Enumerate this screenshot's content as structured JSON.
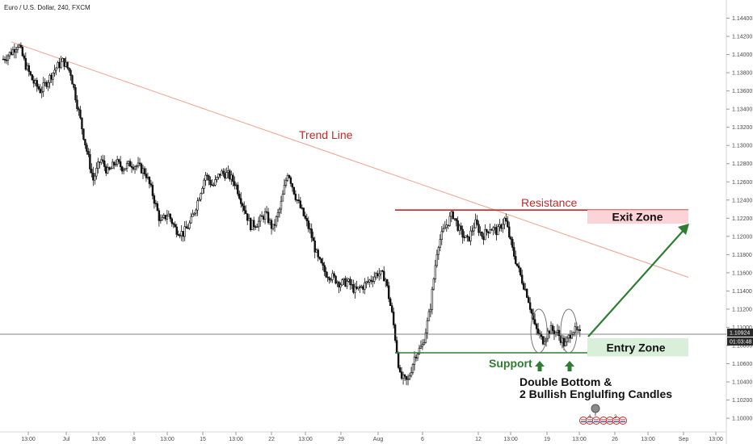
{
  "header": {
    "symbol_title": "Euro / U.S. Dollar, 240, FXCM"
  },
  "chart_data": {
    "type": "candlestick",
    "y_axis": {
      "ylim": [
        1.0985,
        1.146
      ],
      "tick_labels": [
        "1.14400",
        "1.14200",
        "1.14000",
        "1.13800",
        "1.13600",
        "1.13400",
        "1.13200",
        "1.13000",
        "1.12800",
        "1.12600",
        "1.12400",
        "1.12200",
        "1.12000",
        "1.11800",
        "1.11600",
        "1.11400",
        "1.11200",
        "1.11000",
        "1.10800",
        "1.10600",
        "1.10400",
        "1.10200",
        "1.10000"
      ]
    },
    "x_axis": {
      "tick_labels": [
        "13:00",
        "Jul",
        "13:00",
        "8",
        "13:00",
        "15",
        "13:00",
        "22",
        "13:00",
        "29",
        "Aug",
        "6",
        "12",
        "13:00",
        "19",
        "13:00",
        "26",
        "13:00",
        "Sep",
        "13:00"
      ]
    },
    "current_price": {
      "value": 1.10924,
      "label": "1.10924",
      "countdown": "01:03:48"
    },
    "close_path": [
      [
        0,
        1.1395
      ],
      [
        1,
        1.1402
      ],
      [
        2,
        1.1412
      ],
      [
        3,
        1.1388
      ],
      [
        4,
        1.137
      ],
      [
        5,
        1.136
      ],
      [
        6,
        1.1372
      ],
      [
        7,
        1.1385
      ],
      [
        8,
        1.1393
      ],
      [
        9,
        1.138
      ],
      [
        10,
        1.134
      ],
      [
        11,
        1.13
      ],
      [
        12,
        1.1262
      ],
      [
        13,
        1.1285
      ],
      [
        14,
        1.127
      ],
      [
        15,
        1.1282
      ],
      [
        16,
        1.1275
      ],
      [
        17,
        1.128
      ],
      [
        18,
        1.1277
      ],
      [
        19,
        1.127
      ],
      [
        20,
        1.1245
      ],
      [
        21,
        1.1215
      ],
      [
        22,
        1.1225
      ],
      [
        23,
        1.1208
      ],
      [
        24,
        1.1203
      ],
      [
        25,
        1.1215
      ],
      [
        26,
        1.124
      ],
      [
        27,
        1.1268
      ],
      [
        28,
        1.1255
      ],
      [
        29,
        1.127
      ],
      [
        30,
        1.1268
      ],
      [
        31,
        1.1258
      ],
      [
        32,
        1.1235
      ],
      [
        33,
        1.1212
      ],
      [
        34,
        1.1215
      ],
      [
        35,
        1.1225
      ],
      [
        36,
        1.1208
      ],
      [
        37,
        1.1232
      ],
      [
        38,
        1.1272
      ],
      [
        39,
        1.1245
      ],
      [
        40,
        1.1225
      ],
      [
        41,
        1.1205
      ],
      [
        42,
        1.1175
      ],
      [
        43,
        1.116
      ],
      [
        44,
        1.1155
      ],
      [
        45,
        1.1148
      ],
      [
        46,
        1.115
      ],
      [
        47,
        1.114
      ],
      [
        48,
        1.1145
      ],
      [
        49,
        1.1152
      ],
      [
        50,
        1.116
      ],
      [
        51,
        1.1155
      ],
      [
        52,
        1.111
      ],
      [
        53,
        1.1045
      ],
      [
        54,
        1.104
      ],
      [
        55,
        1.107
      ],
      [
        56,
        1.108
      ],
      [
        57,
        1.112
      ],
      [
        58,
        1.119
      ],
      [
        59,
        1.121
      ],
      [
        60,
        1.1225
      ],
      [
        61,
        1.1205
      ],
      [
        62,
        1.1195
      ],
      [
        63,
        1.1215
      ],
      [
        64,
        1.12
      ],
      [
        65,
        1.121
      ],
      [
        66,
        1.1205
      ],
      [
        67,
        1.122
      ],
      [
        68,
        1.1185
      ],
      [
        69,
        1.1158
      ],
      [
        70,
        1.1135
      ],
      [
        71,
        1.11
      ],
      [
        72,
        1.1085
      ],
      [
        73,
        1.1098
      ],
      [
        74,
        1.1094
      ],
      [
        75,
        1.108
      ],
      [
        76,
        1.1098
      ],
      [
        77,
        1.1092
      ]
    ]
  },
  "annotations": {
    "trend_line": {
      "label": "Trend Line",
      "from": [
        0,
        1.1414
      ],
      "to": [
        77,
        1.1155
      ],
      "color": "#f2a08f"
    },
    "resistance": {
      "label": "Resistance",
      "price": 1.1229,
      "x_start": 56,
      "color": "#c62828"
    },
    "support": {
      "label": "Support",
      "price": 1.1072,
      "x_start": 56,
      "color": "#2e7d32"
    },
    "exit_zone": {
      "label": "Exit Zone",
      "price_top": 1.1229,
      "price_bottom": 1.1214,
      "color": "#fcd3d6"
    },
    "entry_zone": {
      "label": "Entry Zone",
      "price_top": 1.1088,
      "price_bottom": 1.1068,
      "color": "#d9efd9"
    },
    "pattern_line1": "Double Bottom &",
    "pattern_line2": "2 Bullish Englulfing Candles",
    "arrow_color": "#2e7d32"
  },
  "event_badges": [
    "4",
    "2"
  ]
}
